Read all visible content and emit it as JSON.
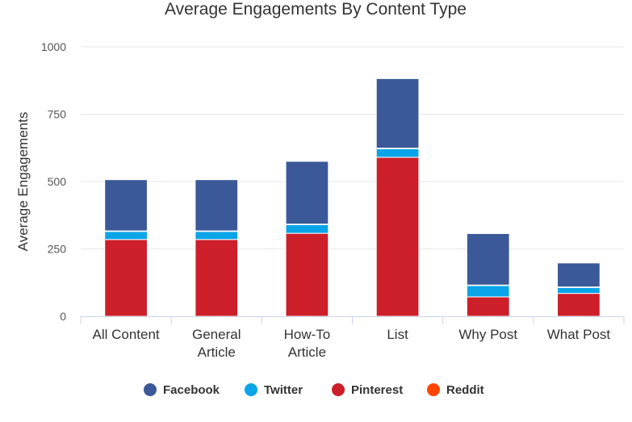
{
  "chart_data": {
    "type": "bar",
    "stacked": true,
    "title": "Average Engagements By Content Type",
    "xlabel": "",
    "ylabel": "Average Engagements",
    "ylim": [
      0,
      1000
    ],
    "yticks": [
      0,
      250,
      500,
      750,
      1000
    ],
    "categories": [
      [
        "All Content"
      ],
      [
        "General",
        "Article"
      ],
      [
        "How-To",
        "Article"
      ],
      [
        "List"
      ],
      [
        "Why Post"
      ],
      [
        "What Post"
      ]
    ],
    "series": [
      {
        "name": "Pinterest",
        "color": "#cc1f2a",
        "values": [
          285,
          285,
          308,
          590,
          72,
          85
        ]
      },
      {
        "name": "Twitter",
        "color": "#0aa4e8",
        "values": [
          30,
          30,
          32,
          32,
          42,
          22
        ]
      },
      {
        "name": "Reddit",
        "color": "#ff4500",
        "values": [
          2,
          2,
          2,
          2,
          2,
          2
        ]
      },
      {
        "name": "Facebook",
        "color": "#3b5998",
        "values": [
          190,
          190,
          233,
          258,
          191,
          89
        ]
      }
    ],
    "legend_order": [
      "Facebook",
      "Twitter",
      "Pinterest",
      "Reddit"
    ],
    "legend_position": "bottom",
    "grid": true
  }
}
